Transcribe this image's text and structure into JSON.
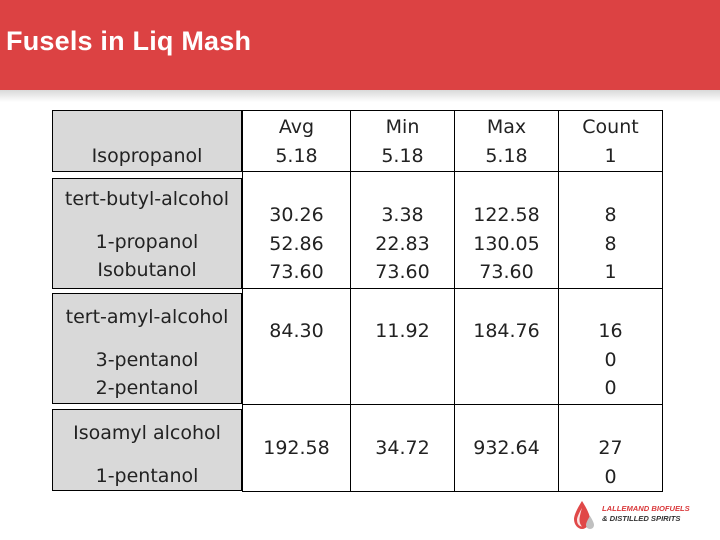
{
  "slide": {
    "title": "Fusels in Liq Mash",
    "accent_color": "#dc4243"
  },
  "table": {
    "headers": [
      "Avg",
      "Min",
      "Max",
      "Count"
    ],
    "groups": [
      {
        "labels": [
          "Isopropanol"
        ],
        "avg": [
          "5.18"
        ],
        "min": [
          "5.18"
        ],
        "max": [
          "5.18"
        ],
        "count": [
          "1"
        ]
      },
      {
        "labels": [
          "tert-butyl-alcohol",
          "1-propanol",
          "Isobutanol"
        ],
        "avg": [
          "30.26",
          "52.86",
          "73.60"
        ],
        "min": [
          "3.38",
          "22.83",
          "73.60"
        ],
        "max": [
          "122.58",
          "130.05",
          "73.60"
        ],
        "count": [
          "8",
          "8",
          "1"
        ]
      },
      {
        "labels": [
          "tert-amyl-alcohol",
          "3-pentanol",
          "2-pentanol"
        ],
        "avg": [
          "84.30"
        ],
        "min": [
          "11.92"
        ],
        "max": [
          "184.76"
        ],
        "count": [
          "16",
          "0",
          "0"
        ]
      },
      {
        "labels": [
          "Isoamyl alcohol",
          "1-pentanol"
        ],
        "avg": [
          "192.58"
        ],
        "min": [
          "34.72"
        ],
        "max": [
          "932.64"
        ],
        "count": [
          "27",
          "0"
        ]
      }
    ]
  },
  "logo": {
    "line1": "LALLEMAND BIOFUELS",
    "line2": "& DISTILLED SPIRITS",
    "icon": "drop-logo-icon"
  }
}
